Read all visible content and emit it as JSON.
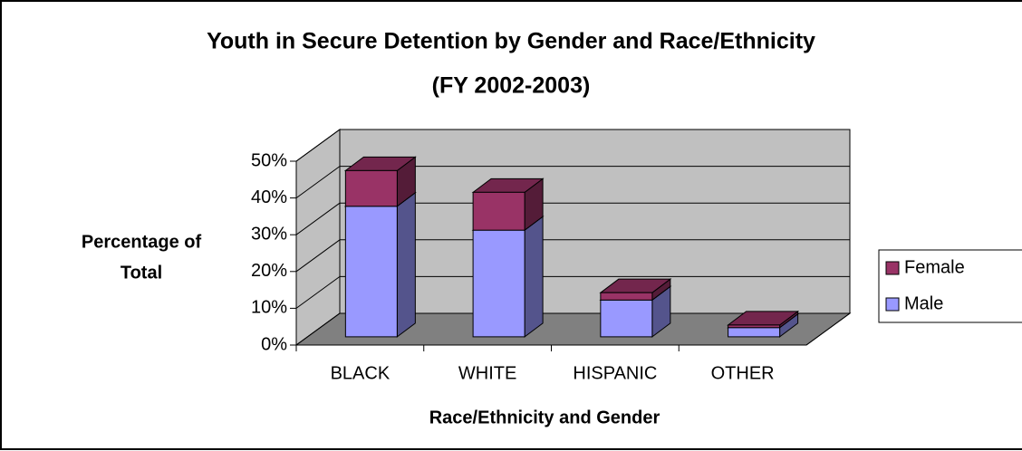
{
  "chart_data": {
    "type": "bar3d_stacked",
    "title": "Youth in Secure Detention by Gender and Race/Ethnicity",
    "subtitle": "(FY 2002-2003)",
    "ylabel": [
      "Percentage of",
      "Total"
    ],
    "xlabel": "Race/Ethnicity and Gender",
    "categories": [
      "BLACK",
      "WHITE",
      "HISPANIC",
      "OTHER"
    ],
    "series": [
      {
        "name": "Male",
        "color": "#9999ff",
        "values": [
          35.5,
          29,
          10,
          2.5
        ]
      },
      {
        "name": "Female",
        "color": "#993366",
        "values": [
          9.7,
          10.3,
          2,
          0.7
        ]
      }
    ],
    "ylim": [
      0,
      50
    ],
    "yticks": [
      {
        "value": 0,
        "label": "0%"
      },
      {
        "value": 10,
        "label": "10%"
      },
      {
        "value": 20,
        "label": "20%"
      },
      {
        "value": 30,
        "label": "30%"
      },
      {
        "value": 40,
        "label": "40%"
      },
      {
        "value": 50,
        "label": "50%"
      }
    ],
    "grid": true,
    "legend": "right"
  }
}
